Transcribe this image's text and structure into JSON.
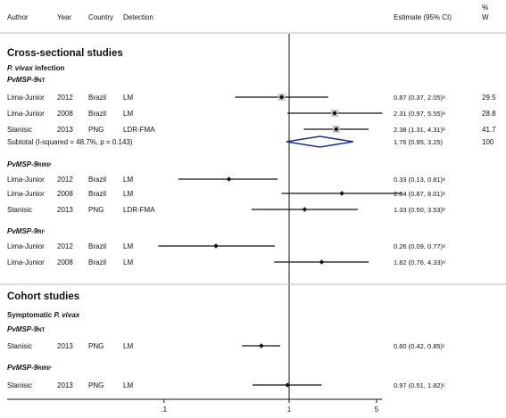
{
  "header": {
    "author": "Author",
    "year": "Year",
    "country": "Country",
    "detection": "Detection",
    "estimate": "Estimate (95% CI)",
    "weight_top": "%",
    "weight_bottom": "W"
  },
  "sections": {
    "cross": "Cross-sectional studies",
    "cohort": "Cohort studies"
  },
  "subheads": {
    "pvivax_infection": {
      "italic": "P. vivax",
      "rest": " infection"
    },
    "symptomatic": {
      "plain": "Symptomatic ",
      "italic": "P. vivax"
    }
  },
  "groups": {
    "g1": "PvMSP-9NT",
    "g2": "PvMSP-9RIRII¹",
    "g3": "PvMSP-9RI¹",
    "g4": "PvMSP-9NT",
    "g5": "PvMSP-9RIRII¹"
  },
  "subtotal": {
    "label": "Subtotal  (I-squared = 48.7%, p = 0.143)",
    "estimate": 1.76,
    "lo": 0.95,
    "hi": 3.25,
    "est_text": "1.76 (0.95, 3.25)",
    "weight": "100"
  },
  "rows": [
    {
      "author": "Lima-Junior",
      "year": "2012",
      "country": "Brazil",
      "detection": "LM",
      "estimate": 0.87,
      "lo": 0.37,
      "hi": 2.05,
      "est_text": "0.87 (0.37, 2.05)ᵃ",
      "weight": "29.5",
      "box": true
    },
    {
      "author": "Lima-Junior",
      "year": "2008",
      "country": "Brazil",
      "detection": "LM",
      "estimate": 2.31,
      "lo": 0.97,
      "hi": 5.55,
      "est_text": "2.31 (0.97, 5.55)ᵃ",
      "weight": "28.8",
      "box": true
    },
    {
      "author": "Stanisic",
      "year": "2013",
      "country": "PNG",
      "detection": "LDR-FMA",
      "estimate": 2.38,
      "lo": 1.31,
      "hi": 4.31,
      "est_text": "2.38 (1.31, 4.31)ᵇ",
      "weight": "41.7",
      "box": true
    },
    {
      "author": "Lima-Junior",
      "year": "2012",
      "country": "Brazil",
      "detection": "LM",
      "estimate": 0.33,
      "lo": 0.13,
      "hi": 0.81,
      "est_text": "0.33 (0.13, 0.81)ᵃ",
      "weight": ""
    },
    {
      "author": "Lima-Junior",
      "year": "2008",
      "country": "Brazil",
      "detection": "LM",
      "estimate": 2.64,
      "lo": 0.87,
      "hi": 8.01,
      "est_text": "2.64 (0.87, 8.01)ᵃ",
      "weight": ""
    },
    {
      "author": "Stanisic",
      "year": "2013",
      "country": "PNG",
      "detection": "LDR-FMA",
      "estimate": 1.33,
      "lo": 0.5,
      "hi": 3.53,
      "est_text": "1.33 (0.50, 3.53)ᵇ",
      "weight": ""
    },
    {
      "author": "Lima-Junior",
      "year": "2012",
      "country": "Brazil",
      "detection": "LM",
      "estimate": 0.26,
      "lo": 0.09,
      "hi": 0.77,
      "est_text": "0.26 (0.09, 0.77)ᵃ",
      "weight": ""
    },
    {
      "author": "Lima-Junior",
      "year": "2008",
      "country": "Brazil",
      "detection": "LM",
      "estimate": 1.82,
      "lo": 0.76,
      "hi": 4.33,
      "est_text": "1.82 (0.76, 4.33)ᵃ",
      "weight": ""
    },
    {
      "author": "Stanisic",
      "year": "2013",
      "country": "PNG",
      "detection": "LM",
      "estimate": 0.6,
      "lo": 0.42,
      "hi": 0.85,
      "est_text": "0.60 (0.42, 0.85)ᶜ",
      "weight": ""
    },
    {
      "author": "Stanisic",
      "year": "2013",
      "country": "PNG",
      "detection": "LM",
      "estimate": 0.97,
      "lo": 0.51,
      "hi": 1.82,
      "est_text": "0.97 (0.51, 1.82)ᶜ",
      "weight": ""
    }
  ],
  "axis": {
    "ticks": [
      {
        "value": 0.1,
        "label": ".1"
      },
      {
        "value": 1,
        "label": "1"
      },
      {
        "value": 5,
        "label": "5"
      }
    ]
  },
  "colors": {
    "line": "#111111",
    "diamond": "#1f2f8a",
    "box": "#c8c8c8",
    "separator": "#bbbbbb"
  },
  "chart_data": {
    "type": "scatter",
    "xscale": "log",
    "reference_line": 1,
    "ylabel": "",
    "xlabel": "",
    "series": [
      {
        "x": [
          0.87,
          2.31,
          2.38,
          0.33,
          2.64,
          1.33,
          0.26,
          1.82,
          0.6,
          0.97
        ]
      }
    ],
    "ci_lower": [
      0.37,
      0.97,
      1.31,
      0.13,
      0.87,
      0.5,
      0.09,
      0.76,
      0.42,
      0.51
    ],
    "ci_upper": [
      2.05,
      5.55,
      4.31,
      0.81,
      8.01,
      3.53,
      0.77,
      4.33,
      0.85,
      1.82
    ],
    "subtotal": {
      "estimate": 1.76,
      "lo": 0.95,
      "hi": 3.25
    }
  }
}
